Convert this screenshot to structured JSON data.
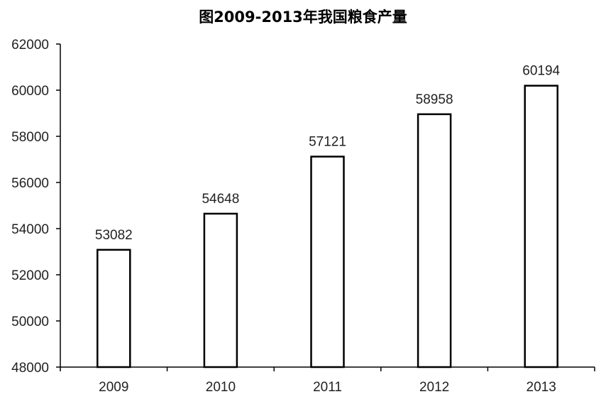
{
  "chart_data": {
    "type": "bar",
    "title": "图2009-2013年我国粮食产量",
    "categories": [
      "2009",
      "2010",
      "2011",
      "2012",
      "2013"
    ],
    "values": [
      53082,
      54648,
      57121,
      58958,
      60194
    ],
    "data_labels": [
      "53082",
      "54648",
      "57121",
      "58958",
      "60194"
    ],
    "y_ticks": [
      "48000",
      "50000",
      "52000",
      "54000",
      "56000",
      "58000",
      "60000",
      "62000"
    ],
    "ylim": [
      48000,
      62000
    ],
    "xlabel": "",
    "ylabel": "",
    "grid": false,
    "legend": "none",
    "bar_fill": "#ffffff",
    "bar_stroke": "#000000"
  }
}
